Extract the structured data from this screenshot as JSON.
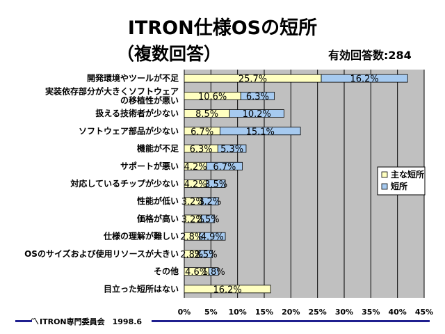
{
  "title_line1": "ITRON仕様OSの短所",
  "title_line2": "（複数回答）",
  "respondents": "有効回答数:284",
  "footer": {
    "logo": "〽",
    "text": "ITRON専門委員会　1998.6"
  },
  "chart_data": {
    "type": "bar",
    "orientation": "horizontal",
    "stacked": true,
    "title": "ITRON仕様OSの短所（複数回答）",
    "categories": [
      "開発環境やツールが不足",
      "実装依存部分が大きくソフトウェアの移植性が悪い",
      "扱える技術者が少ない",
      "ソフトウェア部品が少ない",
      "機能が不足",
      "サポートが悪い",
      "対応しているチップが少ない",
      "性能が低い",
      "価格が高い",
      "仕様の理解が難しい",
      "OSのサイズおよび使用リソースが大きい",
      "その他",
      "目立った短所はない"
    ],
    "category_lines": [
      [
        "開発環境やツールが不足"
      ],
      [
        "実装依存部分が大きくソフトウェア",
        "の移植性が悪い"
      ],
      [
        "扱える技術者が少ない"
      ],
      [
        "ソフトウェア部品が少ない"
      ],
      [
        "機能が不足"
      ],
      [
        "サポートが悪い"
      ],
      [
        "対応しているチップが少ない"
      ],
      [
        "性能が低い"
      ],
      [
        "価格が高い"
      ],
      [
        "仕様の理解が難しい"
      ],
      [
        "OSのサイズおよび使用リソースが大きい"
      ],
      [
        "その他"
      ],
      [
        "目立った短所はない"
      ]
    ],
    "series": [
      {
        "name": "主な短所",
        "color": "#ffffc0",
        "values": [
          25.7,
          10.6,
          8.5,
          6.7,
          6.3,
          4.2,
          4.2,
          3.2,
          3.2,
          2.8,
          2.8,
          4.6,
          16.2
        ],
        "labels": [
          "25.7%",
          "10.6%",
          "8.5%",
          "6.7%",
          "6.3%",
          "4.2%",
          "4.2%",
          "3.2%",
          "3.2%",
          "2.8%",
          "2.8%",
          "4.6%",
          "16.2%"
        ]
      },
      {
        "name": "短所",
        "color": "#a6caf0",
        "values": [
          16.2,
          6.3,
          10.2,
          15.1,
          5.3,
          6.7,
          3.5,
          3.2,
          2.5,
          4.9,
          2.5,
          1.8,
          null
        ],
        "labels": [
          "16.2%",
          "6.3%",
          "10.2%",
          "15.1%",
          "5.3%",
          "6.7%",
          "3.5%",
          "3.2%",
          "2.5%",
          "4.9%",
          "2.5%",
          "1.8%",
          ""
        ]
      }
    ],
    "xlim": [
      0,
      45
    ],
    "x_ticks": [
      0,
      5,
      10,
      15,
      20,
      25,
      30,
      35,
      40,
      45
    ],
    "x_tick_labels": [
      "0%",
      "5%",
      "10%",
      "15%",
      "20%",
      "25%",
      "30%",
      "35%",
      "40%",
      "45%"
    ],
    "plot_background": "#c0c0c0",
    "grid": true,
    "legend_position": "right"
  }
}
